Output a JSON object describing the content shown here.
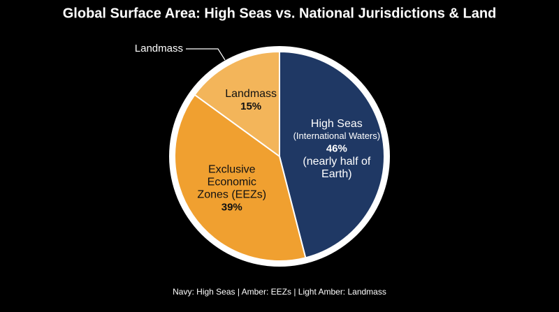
{
  "chart_data": {
    "type": "pie",
    "title": "Global Surface Area: High Seas vs. National Jurisdictions & Land",
    "slice_labels": [
      [
        "High Seas",
        "(International Waters)"
      ],
      [
        "Exclusive",
        "Economic",
        "Zones (EEZs)"
      ],
      [
        "Landmass"
      ]
    ],
    "values": [
      46,
      39,
      15
    ],
    "value_labels": [
      "46%",
      "39%",
      "15%"
    ],
    "value_notes": [
      [
        "(nearly half of",
        "Earth)"
      ],
      [],
      []
    ],
    "colors": [
      "#1f3864",
      "#f0a030",
      "#f3b55a"
    ],
    "label_colors": [
      "#ffffff",
      "#111111",
      "#111111"
    ],
    "annotation": "Landmass",
    "caption": "Navy: High Seas | Amber: EEZs | Light Amber: Landmass"
  }
}
